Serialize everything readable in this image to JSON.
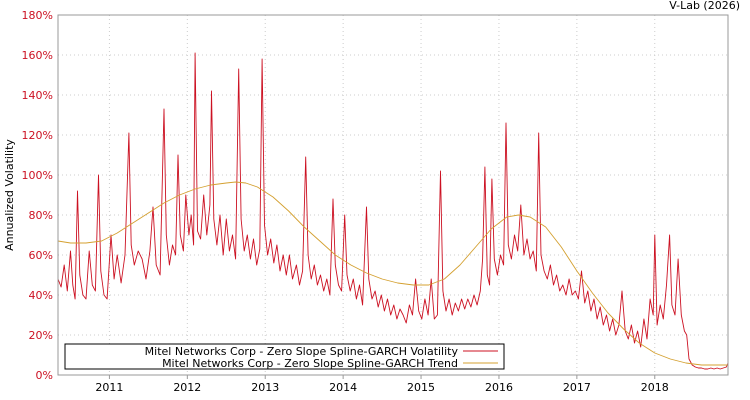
{
  "chart_data": {
    "type": "line",
    "credit": "V-Lab (2026)",
    "ylabel": "Annualized Volatility",
    "xlabel": "",
    "ylim": [
      0,
      180
    ],
    "xlim": [
      2010.34,
      2018.94
    ],
    "grid": true,
    "legend_position": "bottom-left",
    "colors": {
      "volatility": "#cc1122",
      "trend": "#d4a030",
      "ytick_label": "#cc1122",
      "grid": "#cccccc",
      "frame": "#999999"
    },
    "y_ticks": [
      {
        "value": 0,
        "label": "0%"
      },
      {
        "value": 20,
        "label": "20%"
      },
      {
        "value": 40,
        "label": "40%"
      },
      {
        "value": 60,
        "label": "60%"
      },
      {
        "value": 80,
        "label": "80%"
      },
      {
        "value": 100,
        "label": "100%"
      },
      {
        "value": 120,
        "label": "120%"
      },
      {
        "value": 140,
        "label": "140%"
      },
      {
        "value": 160,
        "label": "160%"
      },
      {
        "value": 180,
        "label": "180%"
      }
    ],
    "x_ticks": [
      {
        "value": 2011,
        "label": "2011"
      },
      {
        "value": 2012,
        "label": "2012"
      },
      {
        "value": 2013,
        "label": "2013"
      },
      {
        "value": 2014,
        "label": "2014"
      },
      {
        "value": 2015,
        "label": "2015"
      },
      {
        "value": 2016,
        "label": "2016"
      },
      {
        "value": 2017,
        "label": "2017"
      },
      {
        "value": 2018,
        "label": "2018"
      }
    ],
    "series": [
      {
        "name": "Mitel Networks Corp - Zero Slope Spline-GARCH Volatility",
        "key": "volatility",
        "points": [
          [
            2010.34,
            48
          ],
          [
            2010.38,
            44
          ],
          [
            2010.42,
            55
          ],
          [
            2010.46,
            42
          ],
          [
            2010.5,
            62
          ],
          [
            2010.53,
            45
          ],
          [
            2010.56,
            38
          ],
          [
            2010.59,
            92
          ],
          [
            2010.62,
            50
          ],
          [
            2010.66,
            40
          ],
          [
            2010.7,
            38
          ],
          [
            2010.74,
            62
          ],
          [
            2010.78,
            45
          ],
          [
            2010.82,
            42
          ],
          [
            2010.86,
            100
          ],
          [
            2010.89,
            52
          ],
          [
            2010.93,
            40
          ],
          [
            2010.97,
            38
          ],
          [
            2011.02,
            70
          ],
          [
            2011.06,
            48
          ],
          [
            2011.1,
            60
          ],
          [
            2011.15,
            46
          ],
          [
            2011.2,
            60
          ],
          [
            2011.25,
            121
          ],
          [
            2011.28,
            65
          ],
          [
            2011.32,
            55
          ],
          [
            2011.37,
            62
          ],
          [
            2011.42,
            58
          ],
          [
            2011.47,
            48
          ],
          [
            2011.52,
            62
          ],
          [
            2011.56,
            84
          ],
          [
            2011.6,
            55
          ],
          [
            2011.65,
            50
          ],
          [
            2011.7,
            133
          ],
          [
            2011.73,
            70
          ],
          [
            2011.77,
            55
          ],
          [
            2011.81,
            65
          ],
          [
            2011.85,
            60
          ],
          [
            2011.88,
            110
          ],
          [
            2011.91,
            70
          ],
          [
            2011.95,
            62
          ],
          [
            2011.98,
            90
          ],
          [
            2012.02,
            70
          ],
          [
            2012.05,
            80
          ],
          [
            2012.08,
            65
          ],
          [
            2012.1,
            161
          ],
          [
            2012.13,
            72
          ],
          [
            2012.17,
            68
          ],
          [
            2012.21,
            90
          ],
          [
            2012.25,
            70
          ],
          [
            2012.29,
            85
          ],
          [
            2012.31,
            142
          ],
          [
            2012.34,
            78
          ],
          [
            2012.38,
            65
          ],
          [
            2012.42,
            80
          ],
          [
            2012.46,
            60
          ],
          [
            2012.5,
            78
          ],
          [
            2012.54,
            62
          ],
          [
            2012.58,
            70
          ],
          [
            2012.62,
            58
          ],
          [
            2012.66,
            153
          ],
          [
            2012.69,
            78
          ],
          [
            2012.73,
            62
          ],
          [
            2012.77,
            70
          ],
          [
            2012.81,
            58
          ],
          [
            2012.85,
            68
          ],
          [
            2012.89,
            55
          ],
          [
            2012.93,
            63
          ],
          [
            2012.96,
            158
          ],
          [
            2012.99,
            75
          ],
          [
            2013.03,
            60
          ],
          [
            2013.07,
            68
          ],
          [
            2013.11,
            56
          ],
          [
            2013.15,
            65
          ],
          [
            2013.19,
            52
          ],
          [
            2013.23,
            60
          ],
          [
            2013.27,
            50
          ],
          [
            2013.31,
            60
          ],
          [
            2013.35,
            48
          ],
          [
            2013.4,
            55
          ],
          [
            2013.44,
            45
          ],
          [
            2013.48,
            52
          ],
          [
            2013.52,
            109
          ],
          [
            2013.55,
            60
          ],
          [
            2013.59,
            48
          ],
          [
            2013.63,
            55
          ],
          [
            2013.67,
            45
          ],
          [
            2013.71,
            50
          ],
          [
            2013.75,
            42
          ],
          [
            2013.79,
            48
          ],
          [
            2013.83,
            40
          ],
          [
            2013.87,
            88
          ],
          [
            2013.9,
            55
          ],
          [
            2013.94,
            45
          ],
          [
            2013.98,
            42
          ],
          [
            2014.02,
            80
          ],
          [
            2014.05,
            50
          ],
          [
            2014.09,
            42
          ],
          [
            2014.13,
            48
          ],
          [
            2014.17,
            38
          ],
          [
            2014.21,
            45
          ],
          [
            2014.25,
            35
          ],
          [
            2014.3,
            84
          ],
          [
            2014.33,
            48
          ],
          [
            2014.37,
            38
          ],
          [
            2014.41,
            42
          ],
          [
            2014.45,
            34
          ],
          [
            2014.49,
            40
          ],
          [
            2014.53,
            32
          ],
          [
            2014.57,
            38
          ],
          [
            2014.61,
            30
          ],
          [
            2014.65,
            35
          ],
          [
            2014.69,
            28
          ],
          [
            2014.73,
            33
          ],
          [
            2014.77,
            30
          ],
          [
            2014.81,
            26
          ],
          [
            2014.85,
            35
          ],
          [
            2014.89,
            30
          ],
          [
            2014.93,
            48
          ],
          [
            2014.97,
            32
          ],
          [
            2015.01,
            28
          ],
          [
            2015.05,
            38
          ],
          [
            2015.09,
            30
          ],
          [
            2015.13,
            48
          ],
          [
            2015.17,
            28
          ],
          [
            2015.21,
            30
          ],
          [
            2015.25,
            102
          ],
          [
            2015.28,
            42
          ],
          [
            2015.32,
            32
          ],
          [
            2015.36,
            38
          ],
          [
            2015.4,
            30
          ],
          [
            2015.44,
            36
          ],
          [
            2015.48,
            32
          ],
          [
            2015.52,
            38
          ],
          [
            2015.56,
            33
          ],
          [
            2015.6,
            38
          ],
          [
            2015.64,
            34
          ],
          [
            2015.68,
            40
          ],
          [
            2015.72,
            35
          ],
          [
            2015.76,
            42
          ],
          [
            2015.79,
            58
          ],
          [
            2015.82,
            104
          ],
          [
            2015.85,
            50
          ],
          [
            2015.88,
            45
          ],
          [
            2015.91,
            98
          ],
          [
            2015.94,
            58
          ],
          [
            2015.98,
            50
          ],
          [
            2016.02,
            60
          ],
          [
            2016.06,
            55
          ],
          [
            2016.09,
            126
          ],
          [
            2016.12,
            65
          ],
          [
            2016.16,
            58
          ],
          [
            2016.2,
            70
          ],
          [
            2016.24,
            62
          ],
          [
            2016.28,
            85
          ],
          [
            2016.32,
            60
          ],
          [
            2016.36,
            68
          ],
          [
            2016.4,
            58
          ],
          [
            2016.44,
            62
          ],
          [
            2016.48,
            52
          ],
          [
            2016.51,
            121
          ],
          [
            2016.54,
            60
          ],
          [
            2016.58,
            52
          ],
          [
            2016.62,
            48
          ],
          [
            2016.66,
            55
          ],
          [
            2016.7,
            45
          ],
          [
            2016.74,
            50
          ],
          [
            2016.78,
            42
          ],
          [
            2016.82,
            45
          ],
          [
            2016.86,
            40
          ],
          [
            2016.9,
            48
          ],
          [
            2016.94,
            40
          ],
          [
            2016.98,
            42
          ],
          [
            2017.02,
            38
          ],
          [
            2017.06,
            52
          ],
          [
            2017.1,
            36
          ],
          [
            2017.14,
            42
          ],
          [
            2017.18,
            32
          ],
          [
            2017.22,
            38
          ],
          [
            2017.26,
            28
          ],
          [
            2017.3,
            34
          ],
          [
            2017.34,
            25
          ],
          [
            2017.38,
            30
          ],
          [
            2017.42,
            22
          ],
          [
            2017.46,
            28
          ],
          [
            2017.5,
            20
          ],
          [
            2017.54,
            25
          ],
          [
            2017.58,
            42
          ],
          [
            2017.62,
            22
          ],
          [
            2017.66,
            18
          ],
          [
            2017.7,
            25
          ],
          [
            2017.74,
            16
          ],
          [
            2017.78,
            22
          ],
          [
            2017.82,
            14
          ],
          [
            2017.86,
            28
          ],
          [
            2017.9,
            18
          ],
          [
            2017.94,
            38
          ],
          [
            2017.98,
            30
          ],
          [
            2018.0,
            70
          ],
          [
            2018.03,
            25
          ],
          [
            2018.07,
            35
          ],
          [
            2018.11,
            28
          ],
          [
            2018.15,
            45
          ],
          [
            2018.19,
            70
          ],
          [
            2018.22,
            35
          ],
          [
            2018.26,
            30
          ],
          [
            2018.3,
            58
          ],
          [
            2018.34,
            30
          ],
          [
            2018.38,
            22
          ],
          [
            2018.41,
            20
          ],
          [
            2018.44,
            8
          ],
          [
            2018.48,
            5
          ],
          [
            2018.52,
            4
          ],
          [
            2018.56,
            3.5
          ],
          [
            2018.6,
            3.5
          ],
          [
            2018.64,
            3
          ],
          [
            2018.68,
            3
          ],
          [
            2018.72,
            3.5
          ],
          [
            2018.76,
            3
          ],
          [
            2018.8,
            3.5
          ],
          [
            2018.84,
            3
          ],
          [
            2018.88,
            3.5
          ],
          [
            2018.92,
            4
          ],
          [
            2018.94,
            6
          ]
        ]
      },
      {
        "name": "Mitel Networks Corp - Zero Slope Spline-GARCH Trend",
        "key": "trend",
        "points": [
          [
            2010.34,
            67
          ],
          [
            2010.5,
            66
          ],
          [
            2010.7,
            66
          ],
          [
            2010.9,
            67
          ],
          [
            2011.1,
            71
          ],
          [
            2011.3,
            76
          ],
          [
            2011.5,
            81
          ],
          [
            2011.7,
            86
          ],
          [
            2011.9,
            90
          ],
          [
            2012.1,
            93
          ],
          [
            2012.3,
            95
          ],
          [
            2012.5,
            96
          ],
          [
            2012.62,
            96.5
          ],
          [
            2012.75,
            96
          ],
          [
            2012.9,
            94
          ],
          [
            2013.1,
            89
          ],
          [
            2013.3,
            82
          ],
          [
            2013.5,
            74
          ],
          [
            2013.7,
            67
          ],
          [
            2013.9,
            60
          ],
          [
            2014.1,
            55
          ],
          [
            2014.3,
            51
          ],
          [
            2014.5,
            48
          ],
          [
            2014.7,
            46
          ],
          [
            2014.9,
            45
          ],
          [
            2015.1,
            45
          ],
          [
            2015.3,
            48
          ],
          [
            2015.5,
            55
          ],
          [
            2015.7,
            64
          ],
          [
            2015.9,
            73
          ],
          [
            2016.1,
            79
          ],
          [
            2016.25,
            80
          ],
          [
            2016.4,
            79
          ],
          [
            2016.6,
            74
          ],
          [
            2016.8,
            64
          ],
          [
            2017.0,
            52
          ],
          [
            2017.2,
            41
          ],
          [
            2017.4,
            31
          ],
          [
            2017.6,
            23
          ],
          [
            2017.8,
            16
          ],
          [
            2018.0,
            11
          ],
          [
            2018.2,
            8
          ],
          [
            2018.4,
            6
          ],
          [
            2018.6,
            5
          ],
          [
            2018.8,
            5
          ],
          [
            2018.94,
            5
          ]
        ]
      }
    ]
  }
}
